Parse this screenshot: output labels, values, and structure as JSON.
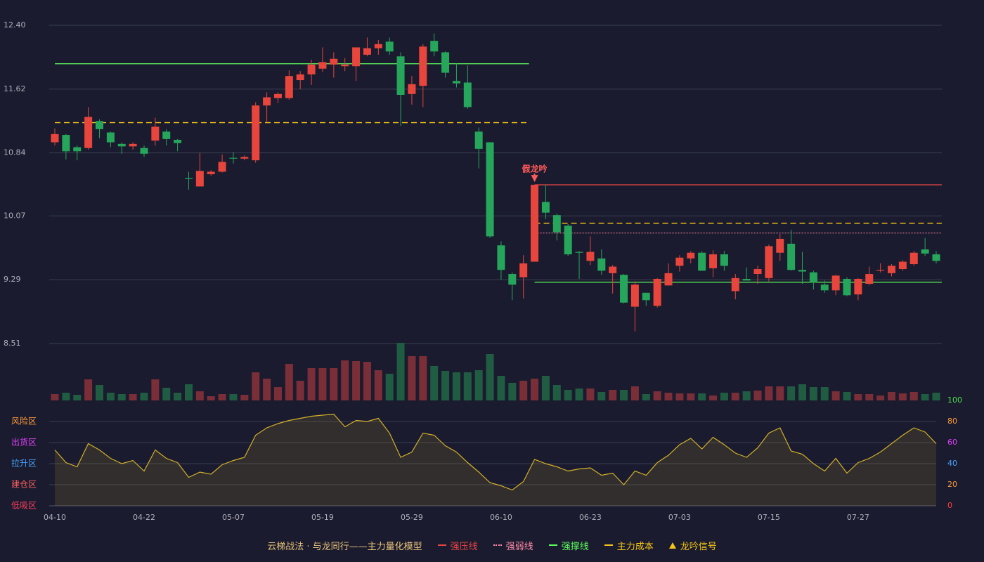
{
  "chart_data": {
    "type": "candlestick",
    "categories": [
      "04-10",
      null,
      null,
      null,
      null,
      null,
      null,
      null,
      "04-22",
      null,
      null,
      null,
      null,
      null,
      null,
      null,
      "05-07",
      null,
      null,
      null,
      null,
      null,
      null,
      null,
      "05-19",
      null,
      null,
      null,
      null,
      null,
      null,
      null,
      "05-29",
      null,
      null,
      null,
      null,
      null,
      null,
      null,
      "06-10",
      null,
      null,
      null,
      null,
      null,
      null,
      null,
      "06-23",
      null,
      null,
      null,
      null,
      null,
      null,
      null,
      "07-03",
      null,
      null,
      null,
      null,
      null,
      null,
      null,
      "07-15",
      null,
      null,
      null,
      null,
      null,
      null,
      null,
      "07-27",
      null,
      null,
      null,
      null,
      null,
      null,
      null
    ],
    "open": [
      10.97,
      11.06,
      10.91,
      10.9,
      11.23,
      11.09,
      10.95,
      10.92,
      10.9,
      10.99,
      11.1,
      11.0,
      10.53,
      10.43,
      10.58,
      10.61,
      10.78,
      10.77,
      10.75,
      11.42,
      11.51,
      11.51,
      11.73,
      11.8,
      11.87,
      11.92,
      11.9,
      11.9,
      12.04,
      12.12,
      12.2,
      12.02,
      11.56,
      11.66,
      12.21,
      12.07,
      11.72,
      11.7,
      11.1,
      10.97,
      9.71,
      9.36,
      9.32,
      9.51,
      10.24,
      10.08,
      9.95,
      9.63,
      9.52,
      9.55,
      9.37,
      9.35,
      8.96,
      9.13,
      8.97,
      9.22,
      9.46,
      9.55,
      9.62,
      9.43,
      9.6,
      9.15,
      9.3,
      9.36,
      9.31,
      9.62,
      9.73,
      9.41,
      9.38,
      9.23,
      9.16,
      9.3,
      9.11,
      9.24,
      9.4,
      9.37,
      9.42,
      9.48,
      9.66,
      9.6
    ],
    "close": [
      11.07,
      10.86,
      10.86,
      11.28,
      11.13,
      10.97,
      10.92,
      10.95,
      10.83,
      11.16,
      11.01,
      10.96,
      10.52,
      10.62,
      10.61,
      10.73,
      10.77,
      10.79,
      11.42,
      11.52,
      11.56,
      11.78,
      11.8,
      11.92,
      11.95,
      11.99,
      11.92,
      12.13,
      12.12,
      12.17,
      12.08,
      11.55,
      11.68,
      12.14,
      12.08,
      11.82,
      11.69,
      11.4,
      10.89,
      9.82,
      9.41,
      9.23,
      9.49,
      10.45,
      10.11,
      9.87,
      9.6,
      9.62,
      9.63,
      9.4,
      9.45,
      9.01,
      9.23,
      9.04,
      9.3,
      9.37,
      9.56,
      9.62,
      9.4,
      9.6,
      9.46,
      9.31,
      9.28,
      9.42,
      9.7,
      9.79,
      9.41,
      9.39,
      9.26,
      9.16,
      9.34,
      9.1,
      9.3,
      9.36,
      9.41,
      9.46,
      9.51,
      9.62,
      9.61,
      9.52
    ],
    "low": [
      10.93,
      10.76,
      10.75,
      10.88,
      11.02,
      10.91,
      10.83,
      10.88,
      10.79,
      10.93,
      10.93,
      10.86,
      10.39,
      10.43,
      10.56,
      10.6,
      10.71,
      10.75,
      10.72,
      11.22,
      11.45,
      11.49,
      11.62,
      11.67,
      11.83,
      11.76,
      11.84,
      11.72,
      12.02,
      12.04,
      12.04,
      11.17,
      11.43,
      11.4,
      12.02,
      11.76,
      11.64,
      11.38,
      10.65,
      9.8,
      9.29,
      9.04,
      9.06,
      9.51,
      10.03,
      9.77,
      9.58,
      9.3,
      9.47,
      9.35,
      9.12,
      9.0,
      8.66,
      8.97,
      8.95,
      9.22,
      9.39,
      9.49,
      9.4,
      9.32,
      9.4,
      9.05,
      9.28,
      9.24,
      9.27,
      9.52,
      9.4,
      9.24,
      9.17,
      9.13,
      9.1,
      9.09,
      9.04,
      9.22,
      9.38,
      9.33,
      9.4,
      9.46,
      9.58,
      9.49
    ],
    "high": [
      11.14,
      11.07,
      10.93,
      11.4,
      11.25,
      11.1,
      10.97,
      10.97,
      10.93,
      11.27,
      11.13,
      11.01,
      10.61,
      10.84,
      10.63,
      10.82,
      10.85,
      10.81,
      11.46,
      11.58,
      11.58,
      11.85,
      11.84,
      11.98,
      12.13,
      12.07,
      12.0,
      12.13,
      12.25,
      12.22,
      12.25,
      12.07,
      11.78,
      12.17,
      12.3,
      12.08,
      11.93,
      11.91,
      11.15,
      10.97,
      9.76,
      9.38,
      9.59,
      10.45,
      10.45,
      10.1,
      9.97,
      9.64,
      9.82,
      9.66,
      9.47,
      9.36,
      9.27,
      9.13,
      9.31,
      9.49,
      9.59,
      9.64,
      9.64,
      9.65,
      9.64,
      9.36,
      9.44,
      9.46,
      9.72,
      9.85,
      9.9,
      9.63,
      9.4,
      9.28,
      9.35,
      9.32,
      9.31,
      9.45,
      9.49,
      9.48,
      9.53,
      9.64,
      9.8,
      9.64
    ],
    "up_color": "#e8453c",
    "down_color": "#26a65b",
    "ylim": [
      8.51,
      12.4
    ],
    "yticks": [
      8.51,
      9.29,
      10.07,
      10.84,
      11.62,
      {
        "value": 12.4,
        "label": "12.40"
      }
    ],
    "grid": true,
    "volume": [
      9,
      11,
      8,
      30,
      22,
      11,
      9,
      9,
      11,
      30,
      18,
      11,
      23,
      13,
      6,
      9,
      9,
      8,
      40,
      31,
      19,
      52,
      28,
      46,
      46,
      46,
      57,
      56,
      55,
      43,
      38,
      82,
      63,
      63,
      49,
      42,
      40,
      40,
      43,
      66,
      35,
      25,
      28,
      31,
      35,
      22,
      15,
      17,
      17,
      12,
      15,
      15,
      20,
      9,
      13,
      11,
      10,
      10,
      10,
      7,
      11,
      11,
      13,
      14,
      20,
      20,
      20,
      23,
      19,
      19,
      13,
      12,
      9,
      9,
      7,
      12,
      10,
      12,
      9,
      11
    ],
    "levels": [
      {
        "name": "强压线",
        "color": "#e84545",
        "style": "solid",
        "segments": [
          {
            "start": 43,
            "end": 79,
            "value": 10.45
          }
        ]
      },
      {
        "name": "强弱线",
        "color": "#ff8aa8",
        "style": "dotted",
        "segments": [
          {
            "start": 43,
            "end": 79,
            "value": 9.86
          }
        ]
      },
      {
        "name": "强撑线",
        "color": "#5eff5e",
        "style": "solid",
        "segments": [
          {
            "start": 0,
            "end": 42,
            "value": 11.93
          },
          {
            "start": 43,
            "end": 79,
            "value": 9.26
          }
        ]
      },
      {
        "name": "主力成本",
        "color": "#f5c518",
        "style": "dashed",
        "segments": [
          {
            "start": 0,
            "end": 42,
            "value": 11.21
          },
          {
            "start": 43,
            "end": 79,
            "value": 9.98
          }
        ]
      }
    ],
    "signals": [
      {
        "index": 43,
        "label": "假龙吟",
        "color": "#ff5a5a"
      }
    ],
    "signal_legend": "龙吟信号",
    "signal_legend_color": "#f5c518",
    "indicator": {
      "color": "#d4b12a",
      "values": [
        53,
        41,
        37,
        59,
        53,
        45,
        40,
        43,
        33,
        53,
        45,
        41,
        27,
        32,
        30,
        39,
        43,
        46,
        67,
        74,
        78,
        81,
        83,
        85,
        86,
        87,
        75,
        81,
        80,
        83,
        69,
        46,
        51,
        69,
        67,
        57,
        51,
        41,
        32,
        22,
        19,
        15,
        23,
        44,
        40,
        37,
        33,
        35,
        36,
        29,
        31,
        20,
        33,
        29,
        41,
        48,
        58,
        64,
        54,
        65,
        58,
        50,
        46,
        55,
        69,
        74,
        52,
        49,
        40,
        33,
        45,
        31,
        41,
        45,
        51,
        59,
        67,
        74,
        70,
        59
      ],
      "ylim": [
        0,
        100
      ],
      "yticks": [
        0,
        20,
        40,
        60,
        80,
        100
      ],
      "tick_colors": [
        "#ff4040",
        "#ff9a3c",
        "#4aa3ff",
        "#e040fb",
        "#ff9a3c",
        "#4cdf50"
      ],
      "zones": [
        {
          "value": 80,
          "label": "风险区",
          "color": "#ff9a3c"
        },
        {
          "value": 60,
          "label": "出货区",
          "color": "#e040fb"
        },
        {
          "value": 40,
          "label": "拉升区",
          "color": "#4aa3ff"
        },
        {
          "value": 20,
          "label": "建仓区",
          "color": "#ff6060"
        },
        {
          "value": 0,
          "label": "低吸区",
          "color": "#ff4060"
        }
      ]
    },
    "legend_title": "云梯战法 · 与龙同行——主力量化模型",
    "legend_title_color": "#e8c07a"
  }
}
